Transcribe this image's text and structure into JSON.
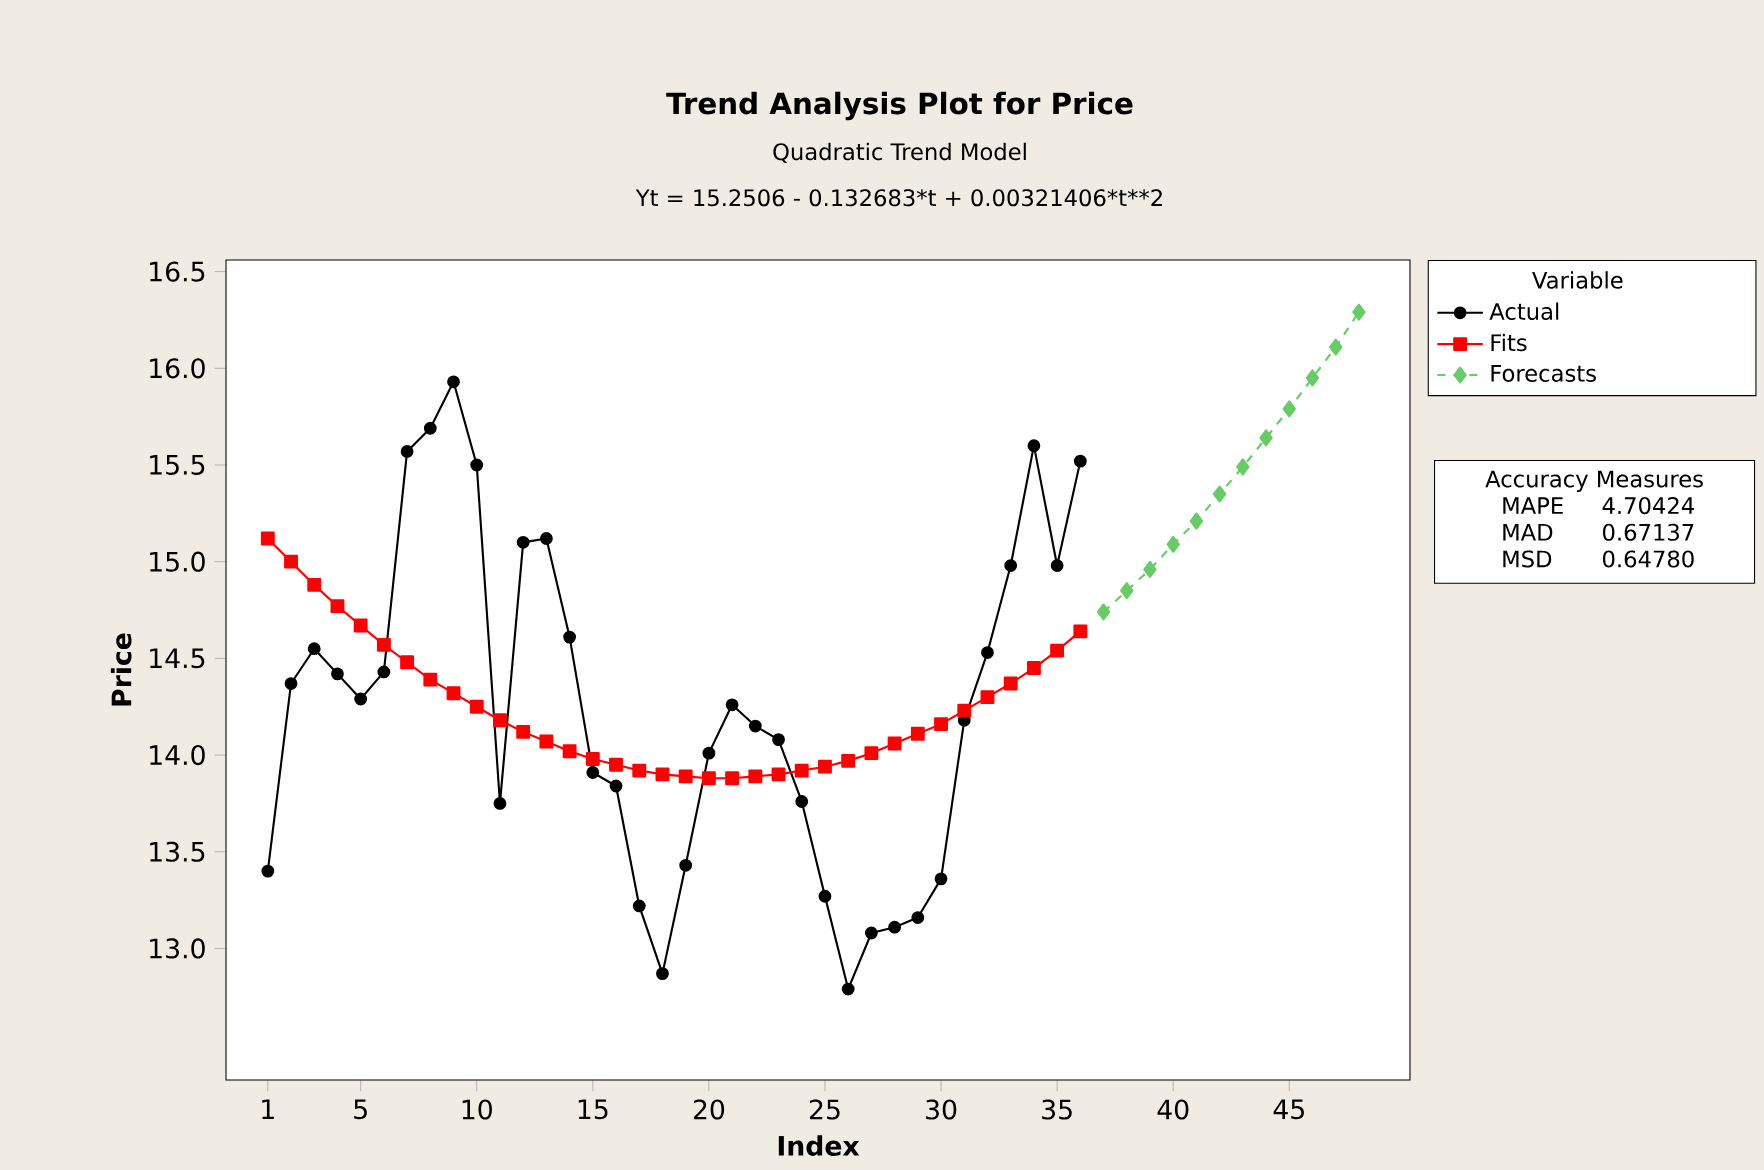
{
  "chart_data": {
    "type": "line",
    "title": "Trend Analysis Plot for Price",
    "subtitle": "Quadratic Trend Model",
    "xlabel": "Index",
    "ylabel": "Price",
    "legend_title": "Variable",
    "annotations": [
      "Yt = 15.2506 - 0.132683*t + 0.00321406*t**2",
      "Accuracy Measures",
      "MAPE",
      "4.70424",
      "MAD",
      "0.67137",
      "MSD",
      "0.64780"
    ],
    "series": [
      {
        "name": "Actual",
        "color": "#000000",
        "marker": "circle",
        "line_style": "solid",
        "x": [
          1,
          2,
          3,
          4,
          5,
          6,
          7,
          8,
          9,
          10,
          11,
          12,
          13,
          14,
          15,
          16,
          17,
          18,
          19,
          20,
          21,
          22,
          23,
          24,
          25,
          26,
          27,
          28,
          29,
          30,
          31,
          32,
          33,
          34,
          35,
          36
        ],
        "values": [
          13.4,
          14.37,
          14.55,
          14.42,
          14.29,
          14.43,
          15.57,
          15.69,
          15.93,
          15.5,
          13.75,
          15.1,
          15.12,
          14.61,
          13.91,
          13.84,
          13.22,
          12.87,
          13.43,
          14.01,
          14.26,
          14.15,
          14.08,
          13.76,
          13.27,
          12.79,
          13.08,
          13.11,
          13.16,
          13.36,
          14.18,
          14.53,
          14.98,
          15.6,
          14.98,
          15.52
        ]
      },
      {
        "name": "Fits",
        "color": "#ff0000",
        "marker": "square",
        "line_style": "solid",
        "x": [
          1,
          2,
          3,
          4,
          5,
          6,
          7,
          8,
          9,
          10,
          11,
          12,
          13,
          14,
          15,
          16,
          17,
          18,
          19,
          20,
          21,
          22,
          23,
          24,
          25,
          26,
          27,
          28,
          29,
          30,
          31,
          32,
          33,
          34,
          35,
          36
        ],
        "values": [
          15.12,
          15.0,
          14.88,
          14.77,
          14.67,
          14.57,
          14.48,
          14.39,
          14.32,
          14.25,
          14.18,
          14.12,
          14.07,
          14.02,
          13.98,
          13.95,
          13.92,
          13.9,
          13.89,
          13.88,
          13.88,
          13.89,
          13.9,
          13.92,
          13.94,
          13.97,
          14.01,
          14.06,
          14.11,
          14.16,
          14.23,
          14.3,
          14.37,
          14.45,
          14.54,
          14.64
        ]
      },
      {
        "name": "Forecasts",
        "color": "#66cc66",
        "marker": "diamond",
        "line_style": "dashed",
        "x": [
          37,
          38,
          39,
          40,
          41,
          42,
          43,
          44,
          45,
          46,
          47,
          48
        ],
        "values": [
          14.74,
          14.85,
          14.96,
          15.09,
          15.21,
          15.35,
          15.49,
          15.64,
          15.79,
          15.95,
          16.11,
          16.29
        ]
      }
    ],
    "xlim": [
      -0.8,
      50.2
    ],
    "ylim": [
      12.32,
      16.56
    ],
    "xticks": [
      1,
      5,
      10,
      15,
      20,
      25,
      30,
      35,
      40,
      45
    ],
    "yticks": [
      {
        "value": 13.0,
        "label": "13.0"
      },
      13.5,
      {
        "value": 14.0,
        "label": "14.0"
      },
      14.5,
      {
        "value": 15.0,
        "label": "15.0"
      },
      15.5,
      {
        "value": 16.0,
        "label": "16.0"
      },
      16.5
    ],
    "grid": false,
    "legend": "right"
  }
}
